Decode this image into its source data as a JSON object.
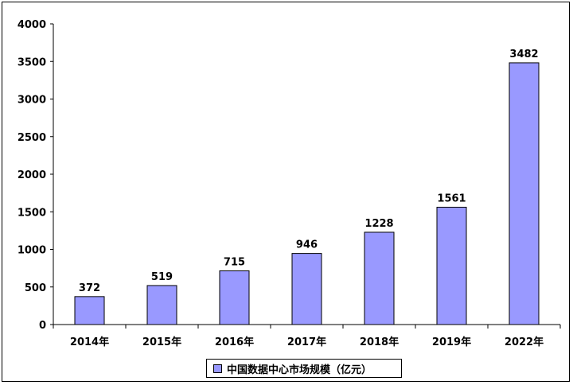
{
  "chart_data": {
    "type": "bar",
    "categories": [
      "2014年",
      "2015年",
      "2016年",
      "2017年",
      "2018年",
      "2019年",
      "2022年"
    ],
    "series": [
      {
        "name": "中国数据中心市场规模（亿元）",
        "values": [
          372,
          519,
          715,
          946,
          1228,
          1561,
          3482
        ]
      }
    ],
    "ylim": [
      0,
      4000
    ],
    "yticks": [
      0,
      500,
      1000,
      1500,
      2000,
      2500,
      3000,
      3500,
      4000
    ],
    "grid": false,
    "legend_position": "bottom",
    "data_labels": true
  },
  "colors": {
    "bar_fill": "#9999ff",
    "bar_stroke": "#000000"
  }
}
